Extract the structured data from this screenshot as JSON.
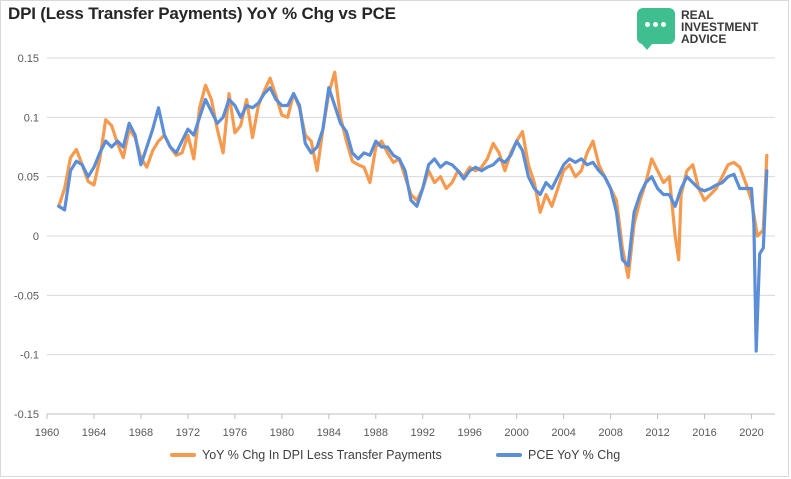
{
  "title": "DPI (Less Transfer Payments) YoY % Chg vs PCE",
  "logo": {
    "lines": [
      "REAL",
      "INVESTMENT",
      "ADVICE"
    ],
    "color": "#3fbf8f"
  },
  "chart_data": {
    "type": "line",
    "title": "DPI (Less Transfer Payments) YoY % Chg vs PCE",
    "xlabel": "",
    "ylabel": "",
    "xlim": [
      1960,
      2022
    ],
    "ylim": [
      -0.15,
      0.15
    ],
    "x_ticks": [
      1960,
      1964,
      1968,
      1972,
      1976,
      1980,
      1984,
      1988,
      1992,
      1996,
      2000,
      2004,
      2008,
      2012,
      2016,
      2020
    ],
    "y_ticks": [
      -0.15,
      -0.1,
      -0.05,
      0,
      0.05,
      0.1,
      0.15
    ],
    "y_tick_labels": [
      "-0.15",
      "-0.1",
      "-0.05",
      "0",
      "0.05",
      "0.1",
      "0.15"
    ],
    "grid": "horizontal",
    "legend_position": "bottom",
    "series": [
      {
        "name": "YoY % Chg In DPI Less Transfer Payments",
        "color": "#f59a4f",
        "points": [
          [
            1961.0,
            0.025
          ],
          [
            1961.5,
            0.04
          ],
          [
            1962.0,
            0.066
          ],
          [
            1962.5,
            0.073
          ],
          [
            1963.0,
            0.06
          ],
          [
            1963.5,
            0.046
          ],
          [
            1964.0,
            0.043
          ],
          [
            1964.5,
            0.065
          ],
          [
            1965.0,
            0.098
          ],
          [
            1965.5,
            0.093
          ],
          [
            1966.0,
            0.078
          ],
          [
            1966.5,
            0.066
          ],
          [
            1967.0,
            0.09
          ],
          [
            1967.5,
            0.083
          ],
          [
            1968.0,
            0.066
          ],
          [
            1968.5,
            0.058
          ],
          [
            1969.0,
            0.072
          ],
          [
            1969.5,
            0.08
          ],
          [
            1970.0,
            0.085
          ],
          [
            1970.5,
            0.075
          ],
          [
            1971.0,
            0.068
          ],
          [
            1971.5,
            0.07
          ],
          [
            1972.0,
            0.085
          ],
          [
            1972.5,
            0.065
          ],
          [
            1973.0,
            0.108
          ],
          [
            1973.5,
            0.127
          ],
          [
            1974.0,
            0.115
          ],
          [
            1974.5,
            0.09
          ],
          [
            1975.0,
            0.07
          ],
          [
            1975.5,
            0.12
          ],
          [
            1976.0,
            0.087
          ],
          [
            1976.5,
            0.093
          ],
          [
            1977.0,
            0.115
          ],
          [
            1977.5,
            0.083
          ],
          [
            1978.0,
            0.11
          ],
          [
            1978.5,
            0.122
          ],
          [
            1979.0,
            0.133
          ],
          [
            1979.5,
            0.118
          ],
          [
            1980.0,
            0.102
          ],
          [
            1980.5,
            0.1
          ],
          [
            1981.0,
            0.12
          ],
          [
            1981.5,
            0.108
          ],
          [
            1982.0,
            0.085
          ],
          [
            1982.5,
            0.08
          ],
          [
            1983.0,
            0.055
          ],
          [
            1983.5,
            0.09
          ],
          [
            1984.0,
            0.12
          ],
          [
            1984.5,
            0.138
          ],
          [
            1985.0,
            0.1
          ],
          [
            1985.5,
            0.08
          ],
          [
            1986.0,
            0.063
          ],
          [
            1986.5,
            0.06
          ],
          [
            1987.0,
            0.058
          ],
          [
            1987.5,
            0.045
          ],
          [
            1988.0,
            0.075
          ],
          [
            1988.5,
            0.08
          ],
          [
            1989.0,
            0.07
          ],
          [
            1989.5,
            0.062
          ],
          [
            1990.0,
            0.065
          ],
          [
            1990.5,
            0.05
          ],
          [
            1991.0,
            0.035
          ],
          [
            1991.5,
            0.03
          ],
          [
            1992.0,
            0.04
          ],
          [
            1992.5,
            0.055
          ],
          [
            1993.0,
            0.045
          ],
          [
            1993.5,
            0.05
          ],
          [
            1994.0,
            0.04
          ],
          [
            1994.5,
            0.045
          ],
          [
            1995.0,
            0.055
          ],
          [
            1995.5,
            0.05
          ],
          [
            1996.0,
            0.058
          ],
          [
            1996.5,
            0.055
          ],
          [
            1997.0,
            0.058
          ],
          [
            1997.5,
            0.065
          ],
          [
            1998.0,
            0.078
          ],
          [
            1998.5,
            0.07
          ],
          [
            1999.0,
            0.055
          ],
          [
            1999.5,
            0.07
          ],
          [
            2000.0,
            0.08
          ],
          [
            2000.5,
            0.088
          ],
          [
            2001.0,
            0.06
          ],
          [
            2001.5,
            0.045
          ],
          [
            2002.0,
            0.02
          ],
          [
            2002.5,
            0.035
          ],
          [
            2003.0,
            0.025
          ],
          [
            2003.5,
            0.04
          ],
          [
            2004.0,
            0.055
          ],
          [
            2004.5,
            0.06
          ],
          [
            2005.0,
            0.05
          ],
          [
            2005.5,
            0.055
          ],
          [
            2006.0,
            0.07
          ],
          [
            2006.5,
            0.08
          ],
          [
            2007.0,
            0.06
          ],
          [
            2007.5,
            0.05
          ],
          [
            2008.0,
            0.04
          ],
          [
            2008.5,
            0.03
          ],
          [
            2009.0,
            -0.01
          ],
          [
            2009.5,
            -0.035
          ],
          [
            2010.0,
            0.01
          ],
          [
            2010.5,
            0.03
          ],
          [
            2011.0,
            0.045
          ],
          [
            2011.5,
            0.065
          ],
          [
            2012.0,
            0.055
          ],
          [
            2012.5,
            0.045
          ],
          [
            2013.0,
            0.05
          ],
          [
            2013.5,
            0.0
          ],
          [
            2013.8,
            -0.02
          ],
          [
            2014.0,
            0.035
          ],
          [
            2014.5,
            0.055
          ],
          [
            2015.0,
            0.06
          ],
          [
            2015.5,
            0.04
          ],
          [
            2016.0,
            0.03
          ],
          [
            2016.5,
            0.035
          ],
          [
            2017.0,
            0.04
          ],
          [
            2017.5,
            0.05
          ],
          [
            2018.0,
            0.06
          ],
          [
            2018.5,
            0.062
          ],
          [
            2019.0,
            0.058
          ],
          [
            2019.5,
            0.045
          ],
          [
            2020.0,
            0.03
          ],
          [
            2020.5,
            0.0
          ],
          [
            2021.0,
            0.005
          ],
          [
            2021.3,
            0.068
          ]
        ]
      },
      {
        "name": "PCE YoY % Chg",
        "color": "#5b8ed6",
        "points": [
          [
            1961.0,
            0.025
          ],
          [
            1961.5,
            0.022
          ],
          [
            1962.0,
            0.055
          ],
          [
            1962.5,
            0.063
          ],
          [
            1963.0,
            0.06
          ],
          [
            1963.5,
            0.05
          ],
          [
            1964.0,
            0.058
          ],
          [
            1964.5,
            0.07
          ],
          [
            1965.0,
            0.08
          ],
          [
            1965.5,
            0.075
          ],
          [
            1966.0,
            0.08
          ],
          [
            1966.5,
            0.075
          ],
          [
            1967.0,
            0.095
          ],
          [
            1967.5,
            0.085
          ],
          [
            1968.0,
            0.06
          ],
          [
            1968.5,
            0.075
          ],
          [
            1969.0,
            0.09
          ],
          [
            1969.5,
            0.108
          ],
          [
            1970.0,
            0.085
          ],
          [
            1970.5,
            0.075
          ],
          [
            1971.0,
            0.07
          ],
          [
            1971.5,
            0.08
          ],
          [
            1972.0,
            0.09
          ],
          [
            1972.5,
            0.085
          ],
          [
            1973.0,
            0.1
          ],
          [
            1973.5,
            0.115
          ],
          [
            1974.0,
            0.105
          ],
          [
            1974.5,
            0.095
          ],
          [
            1975.0,
            0.1
          ],
          [
            1975.5,
            0.115
          ],
          [
            1976.0,
            0.11
          ],
          [
            1976.5,
            0.1
          ],
          [
            1977.0,
            0.11
          ],
          [
            1977.5,
            0.108
          ],
          [
            1978.0,
            0.112
          ],
          [
            1978.5,
            0.12
          ],
          [
            1979.0,
            0.125
          ],
          [
            1979.5,
            0.115
          ],
          [
            1980.0,
            0.11
          ],
          [
            1980.5,
            0.11
          ],
          [
            1981.0,
            0.12
          ],
          [
            1981.5,
            0.11
          ],
          [
            1982.0,
            0.078
          ],
          [
            1982.5,
            0.07
          ],
          [
            1983.0,
            0.075
          ],
          [
            1983.5,
            0.09
          ],
          [
            1984.0,
            0.125
          ],
          [
            1984.5,
            0.11
          ],
          [
            1985.0,
            0.095
          ],
          [
            1985.5,
            0.088
          ],
          [
            1986.0,
            0.07
          ],
          [
            1986.5,
            0.065
          ],
          [
            1987.0,
            0.07
          ],
          [
            1987.5,
            0.068
          ],
          [
            1988.0,
            0.08
          ],
          [
            1988.5,
            0.075
          ],
          [
            1989.0,
            0.075
          ],
          [
            1989.5,
            0.068
          ],
          [
            1990.0,
            0.065
          ],
          [
            1990.5,
            0.055
          ],
          [
            1991.0,
            0.03
          ],
          [
            1991.5,
            0.025
          ],
          [
            1992.0,
            0.04
          ],
          [
            1992.5,
            0.06
          ],
          [
            1993.0,
            0.065
          ],
          [
            1993.5,
            0.058
          ],
          [
            1994.0,
            0.062
          ],
          [
            1994.5,
            0.06
          ],
          [
            1995.0,
            0.055
          ],
          [
            1995.5,
            0.048
          ],
          [
            1996.0,
            0.055
          ],
          [
            1996.5,
            0.058
          ],
          [
            1997.0,
            0.055
          ],
          [
            1997.5,
            0.058
          ],
          [
            1998.0,
            0.06
          ],
          [
            1998.5,
            0.065
          ],
          [
            1999.0,
            0.062
          ],
          [
            1999.5,
            0.068
          ],
          [
            2000.0,
            0.08
          ],
          [
            2000.5,
            0.072
          ],
          [
            2001.0,
            0.05
          ],
          [
            2001.5,
            0.04
          ],
          [
            2002.0,
            0.035
          ],
          [
            2002.5,
            0.045
          ],
          [
            2003.0,
            0.04
          ],
          [
            2003.5,
            0.05
          ],
          [
            2004.0,
            0.06
          ],
          [
            2004.5,
            0.065
          ],
          [
            2005.0,
            0.062
          ],
          [
            2005.5,
            0.065
          ],
          [
            2006.0,
            0.06
          ],
          [
            2006.5,
            0.062
          ],
          [
            2007.0,
            0.055
          ],
          [
            2007.5,
            0.05
          ],
          [
            2008.0,
            0.04
          ],
          [
            2008.5,
            0.02
          ],
          [
            2009.0,
            -0.02
          ],
          [
            2009.5,
            -0.025
          ],
          [
            2010.0,
            0.02
          ],
          [
            2010.5,
            0.035
          ],
          [
            2011.0,
            0.045
          ],
          [
            2011.5,
            0.05
          ],
          [
            2012.0,
            0.04
          ],
          [
            2012.5,
            0.035
          ],
          [
            2013.0,
            0.035
          ],
          [
            2013.5,
            0.025
          ],
          [
            2014.0,
            0.04
          ],
          [
            2014.5,
            0.05
          ],
          [
            2015.0,
            0.045
          ],
          [
            2015.5,
            0.04
          ],
          [
            2016.0,
            0.038
          ],
          [
            2016.5,
            0.04
          ],
          [
            2017.0,
            0.043
          ],
          [
            2017.5,
            0.045
          ],
          [
            2018.0,
            0.05
          ],
          [
            2018.5,
            0.052
          ],
          [
            2019.0,
            0.04
          ],
          [
            2019.5,
            0.04
          ],
          [
            2020.0,
            0.04
          ],
          [
            2020.2,
            0.01
          ],
          [
            2020.4,
            -0.097
          ],
          [
            2020.7,
            -0.015
          ],
          [
            2021.0,
            -0.01
          ],
          [
            2021.3,
            0.055
          ]
        ]
      }
    ]
  }
}
